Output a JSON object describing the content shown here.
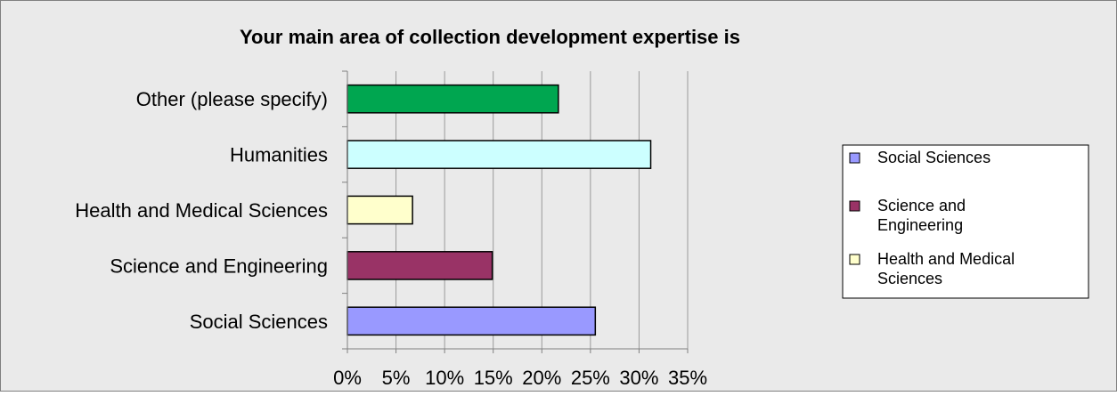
{
  "chart_data": {
    "type": "bar",
    "orientation": "horizontal",
    "title": "Your main area of collection development expertise is",
    "xlabel": "",
    "ylabel": "",
    "categories": [
      "Other (please specify)",
      "Humanities",
      "Health and Medical Sciences",
      "Science and Engineering",
      "Social Sciences"
    ],
    "values": [
      21.7,
      31.2,
      6.7,
      14.9,
      25.5
    ],
    "colors": [
      "#00a650",
      "#ccffff",
      "#ffffcc",
      "#993366",
      "#9999ff"
    ],
    "xlim": [
      0,
      35
    ],
    "xticks": [
      "0%",
      "5%",
      "10%",
      "15%",
      "20%",
      "25%",
      "30%",
      "35%"
    ],
    "grid": true,
    "legend_position": "right",
    "legend": [
      {
        "label": "Social Sciences",
        "color": "#9999ff"
      },
      {
        "label": "Science and Engineering",
        "color": "#993366"
      },
      {
        "label": "Health and Medical Sciences",
        "color": "#ffffcc"
      }
    ],
    "background": "#eaeaea"
  }
}
